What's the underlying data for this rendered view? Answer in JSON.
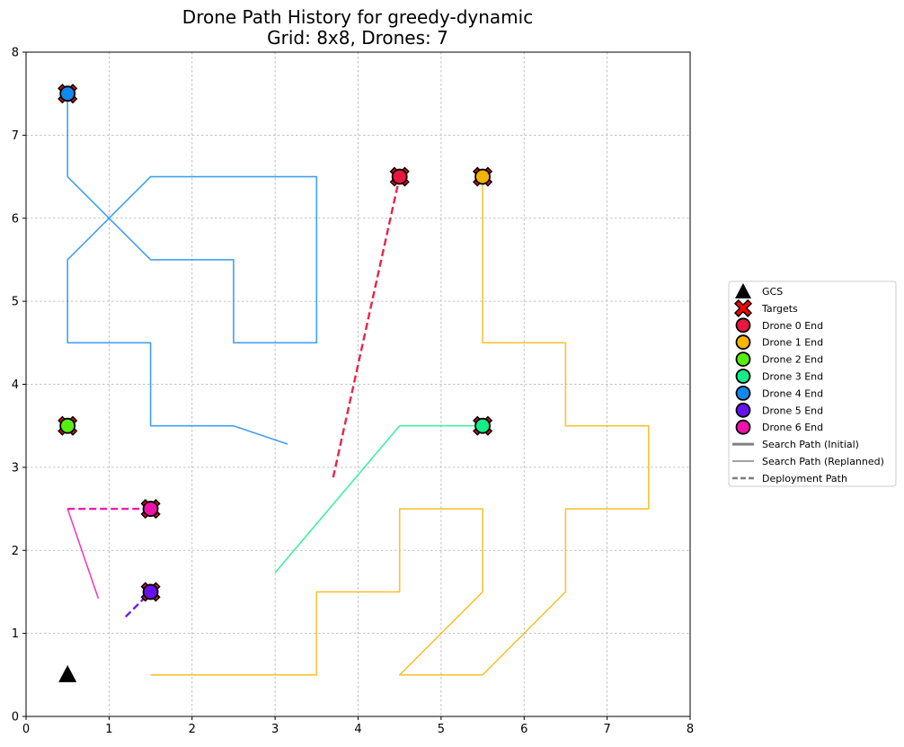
{
  "chart_data": {
    "type": "scatter",
    "title": "Drone Path History for greedy-dynamic",
    "subtitle": "Grid: 8x8, Drones: 7",
    "xlim": [
      0,
      8
    ],
    "ylim": [
      0,
      8
    ],
    "x_ticks": [
      "0",
      "1",
      "2",
      "3",
      "4",
      "5",
      "6",
      "7",
      "8"
    ],
    "y_ticks": [
      "0",
      "1",
      "2",
      "3",
      "4",
      "5",
      "6",
      "7",
      "8"
    ],
    "grid": true,
    "legend_position": "right",
    "gcs": {
      "x": 0.5,
      "y": 0.5,
      "color": "#000000"
    },
    "targets": [
      {
        "x": 0.5,
        "y": 7.5
      },
      {
        "x": 4.5,
        "y": 6.5
      },
      {
        "x": 5.5,
        "y": 6.5
      },
      {
        "x": 5.5,
        "y": 3.5
      },
      {
        "x": 0.5,
        "y": 3.5
      },
      {
        "x": 1.5,
        "y": 2.5
      },
      {
        "x": 1.5,
        "y": 1.5
      }
    ],
    "drones": [
      {
        "id": 0,
        "color": "#e8173f",
        "end": {
          "x": 4.5,
          "y": 6.5
        },
        "search_path": [],
        "deployment_path": [
          {
            "x": 3.7,
            "y": 2.88
          },
          {
            "x": 4.5,
            "y": 6.5
          }
        ]
      },
      {
        "id": 1,
        "color": "#f6b400",
        "end": {
          "x": 5.5,
          "y": 6.5
        },
        "search_path": [
          {
            "x": 1.5,
            "y": 0.5
          },
          {
            "x": 3.5,
            "y": 0.5
          },
          {
            "x": 3.5,
            "y": 1.5
          },
          {
            "x": 4.5,
            "y": 1.5
          },
          {
            "x": 4.5,
            "y": 2.5
          },
          {
            "x": 5.5,
            "y": 2.5
          },
          {
            "x": 5.5,
            "y": 1.5
          },
          {
            "x": 4.5,
            "y": 0.5
          },
          {
            "x": 5.5,
            "y": 0.5
          },
          {
            "x": 6.5,
            "y": 1.5
          },
          {
            "x": 6.5,
            "y": 2.5
          },
          {
            "x": 7.5,
            "y": 2.5
          },
          {
            "x": 7.5,
            "y": 3.5
          },
          {
            "x": 6.5,
            "y": 3.5
          },
          {
            "x": 6.5,
            "y": 4.5
          },
          {
            "x": 5.5,
            "y": 4.5
          },
          {
            "x": 5.5,
            "y": 6.5
          }
        ],
        "deployment_path": []
      },
      {
        "id": 2,
        "color": "#55ee11",
        "end": {
          "x": 0.5,
          "y": 3.5
        },
        "search_path": [],
        "deployment_path": []
      },
      {
        "id": 3,
        "color": "#11ee88",
        "end": {
          "x": 5.5,
          "y": 3.5
        },
        "search_path": [
          {
            "x": 3.0,
            "y": 1.73
          },
          {
            "x": 4.5,
            "y": 3.5
          },
          {
            "x": 5.5,
            "y": 3.5
          }
        ],
        "deployment_path": []
      },
      {
        "id": 4,
        "color": "#1188ee",
        "end": {
          "x": 0.5,
          "y": 7.5
        },
        "search_path": [
          {
            "x": 3.15,
            "y": 3.28
          },
          {
            "x": 2.5,
            "y": 3.5
          },
          {
            "x": 1.5,
            "y": 3.5
          },
          {
            "x": 1.5,
            "y": 4.5
          },
          {
            "x": 0.5,
            "y": 4.5
          },
          {
            "x": 0.5,
            "y": 5.5
          },
          {
            "x": 1.5,
            "y": 6.5
          },
          {
            "x": 3.5,
            "y": 6.5
          },
          {
            "x": 3.5,
            "y": 4.5
          },
          {
            "x": 2.5,
            "y": 4.5
          },
          {
            "x": 2.5,
            "y": 5.5
          },
          {
            "x": 1.5,
            "y": 5.5
          },
          {
            "x": 0.5,
            "y": 6.5
          },
          {
            "x": 0.5,
            "y": 7.5
          }
        ],
        "deployment_path": []
      },
      {
        "id": 5,
        "color": "#6611ee",
        "end": {
          "x": 1.5,
          "y": 1.5
        },
        "search_path": [],
        "deployment_path": [
          {
            "x": 1.2,
            "y": 1.2
          },
          {
            "x": 1.5,
            "y": 1.5
          }
        ]
      },
      {
        "id": 6,
        "color": "#ee11aa",
        "end": {
          "x": 1.5,
          "y": 2.5
        },
        "search_path": [
          {
            "x": 0.87,
            "y": 1.42
          },
          {
            "x": 0.5,
            "y": 2.5
          }
        ],
        "deployment_path": [
          {
            "x": 0.5,
            "y": 2.5
          },
          {
            "x": 1.5,
            "y": 2.5
          }
        ]
      }
    ],
    "legend": [
      {
        "label": "GCS",
        "kind": "triangle",
        "color": "#000000"
      },
      {
        "label": "Targets",
        "kind": "x",
        "color": "#ff0000"
      },
      {
        "label": "Drone 0 End",
        "kind": "circle",
        "color": "#e8173f"
      },
      {
        "label": "Drone 1 End",
        "kind": "circle",
        "color": "#f6b400"
      },
      {
        "label": "Drone 2 End",
        "kind": "circle",
        "color": "#55ee11"
      },
      {
        "label": "Drone 3 End",
        "kind": "circle",
        "color": "#11ee88"
      },
      {
        "label": "Drone 4 End",
        "kind": "circle",
        "color": "#1188ee"
      },
      {
        "label": "Drone 5 End",
        "kind": "circle",
        "color": "#6611ee"
      },
      {
        "label": "Drone 6 End",
        "kind": "circle",
        "color": "#ee11aa"
      },
      {
        "label": "Search Path (Initial)",
        "kind": "thick-line",
        "color": "#808080"
      },
      {
        "label": "Search Path (Replanned)",
        "kind": "line",
        "color": "#808080"
      },
      {
        "label": "Deployment Path",
        "kind": "dashed-line",
        "color": "#808080"
      }
    ]
  }
}
